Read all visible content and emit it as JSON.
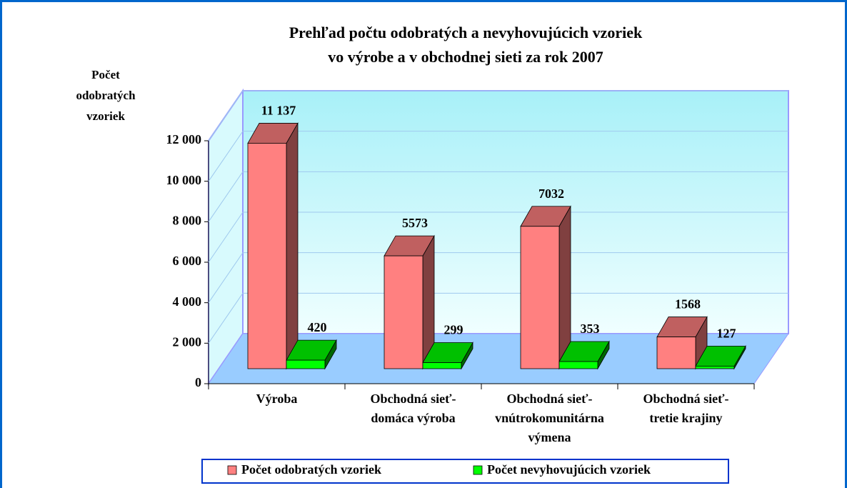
{
  "chart_data": {
    "type": "bar3d",
    "title": [
      "Prehľad počtu odobratých a nevyhovujúcich vzoriek",
      "vo výrobe a v obchodnej sieti za rok 2007"
    ],
    "y_label": [
      "Počet",
      "odobratých",
      "vzoriek"
    ],
    "categories": [
      [
        "Výroba"
      ],
      [
        "Obchodná sieť-",
        "domáca výroba"
      ],
      [
        "Obchodná sieť-",
        "vnútrokomunitárna",
        "výmena"
      ],
      [
        "Obchodná sieť-",
        "tretie krajiny"
      ]
    ],
    "series": [
      {
        "name": "Počet odobratých vzoriek",
        "color": "#ff8080",
        "top": "#c06060",
        "side": "#804040",
        "values": [
          11137,
          5573,
          7032,
          1568
        ],
        "value_labels": [
          "11 137",
          "5573",
          "7032",
          "1568"
        ]
      },
      {
        "name": "Počet nevyhovujúcich vzoriek",
        "color": "#00ff00",
        "top": "#00c000",
        "side": "#006600",
        "values": [
          420,
          299,
          353,
          127
        ]
      }
    ],
    "ylim": [
      0,
      12000
    ],
    "yticks": [
      0,
      {
        "value": 2000,
        "label": "2 000"
      },
      {
        "value": 4000,
        "label": "4 000"
      },
      {
        "value": 6000,
        "label": "6 000"
      },
      {
        "value": 8000,
        "label": "8 000"
      },
      {
        "value": 10000,
        "label": "10 000"
      },
      {
        "value": 12000,
        "label": "12 000"
      }
    ],
    "grid": true
  }
}
